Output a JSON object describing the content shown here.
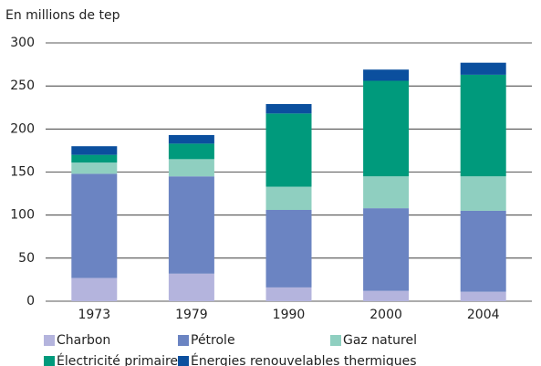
{
  "chart_data": {
    "type": "bar",
    "stacked": true,
    "y_label": "En millions de tep",
    "categories": [
      "1973",
      "1979",
      "1990",
      "2000",
      "2004"
    ],
    "series": [
      {
        "name": "Charbon",
        "color": "#b4b4dd",
        "values": [
          27,
          32,
          16,
          12,
          11
        ]
      },
      {
        "name": "Pétrole",
        "color": "#6b84c2",
        "values": [
          121,
          113,
          90,
          96,
          94
        ]
      },
      {
        "name": "Gaz naturel",
        "color": "#8fcfc0",
        "values": [
          13,
          20,
          27,
          37,
          40
        ]
      },
      {
        "name": "Électricité primaire",
        "color": "#009a7c",
        "values": [
          9,
          18,
          85,
          111,
          118
        ]
      },
      {
        "name": "Énergies renouvelables thermiques",
        "color": "#0b4f9e",
        "values": [
          10,
          10,
          11,
          13,
          14
        ]
      }
    ],
    "ylim": [
      0,
      300
    ],
    "yticks": [
      0,
      50,
      100,
      150,
      200,
      250,
      300
    ],
    "grid": true
  }
}
